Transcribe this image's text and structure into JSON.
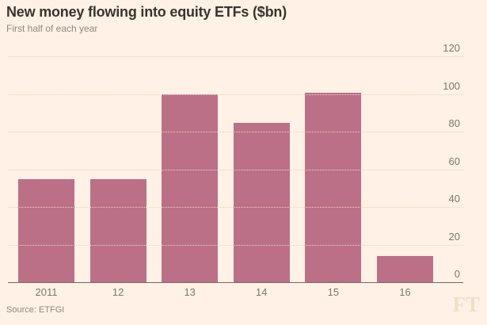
{
  "header": {
    "title": "New money flowing into equity ETFs ($bn)",
    "subtitle": "First half of each year"
  },
  "footer": {
    "source": "Source: ETFGI",
    "brand": "FT"
  },
  "colors": {
    "background": "#FFF1E5",
    "bar": "#BC7088",
    "axis_line": "#716B62",
    "gridline": "#E7D3BF",
    "title_text": "#39342E",
    "muted_text": "#8F897E",
    "tick_text": "#7E776B",
    "brand_watermark": "#F0DFC9"
  },
  "chart_data": {
    "type": "bar",
    "title": "New money flowing into equity ETFs ($bn)",
    "subtitle": "First half of each year",
    "categories": [
      "2011",
      "12",
      "13",
      "14",
      "15",
      "16"
    ],
    "values": [
      55,
      55,
      100,
      85,
      101,
      14
    ],
    "xlabel": "",
    "ylabel": "",
    "ylim": [
      0,
      120
    ],
    "yticks": [
      0,
      20,
      40,
      60,
      80,
      100,
      120
    ],
    "ytick_side": "right",
    "grid": "horizontal-dotted",
    "legend": "none",
    "source": "Source: ETFGI"
  }
}
